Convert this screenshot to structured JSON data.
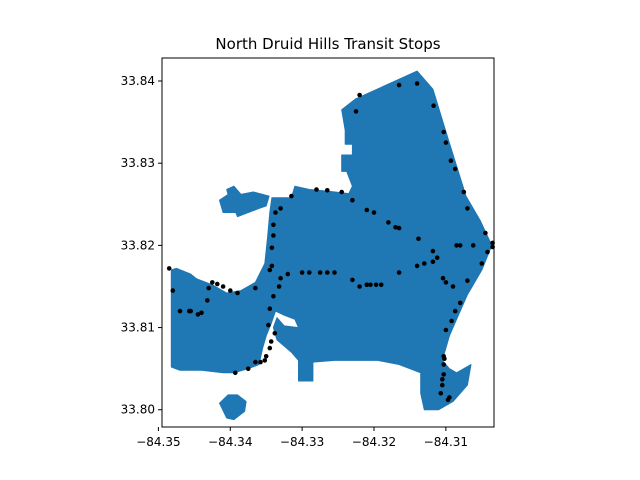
{
  "chart_data": {
    "type": "scatter",
    "title": "North Druid Hills Transit Stops",
    "xlabel": "",
    "ylabel": "",
    "xlim": [
      -84.3495,
      -84.3033
    ],
    "ylim": [
      33.7979,
      33.8428
    ],
    "xticks": [
      -84.35,
      -84.34,
      -84.33,
      -84.32,
      -84.31
    ],
    "xtick_labels": [
      "−84.35",
      "−84.34",
      "−84.33",
      "−84.32",
      "−84.31"
    ],
    "yticks": [
      33.8,
      33.81,
      33.82,
      33.83,
      33.84
    ],
    "ytick_labels": [
      "33.80",
      "33.81",
      "33.82",
      "33.83",
      "33.84"
    ],
    "grid": false,
    "polygon_color": "#1f77b4",
    "point_color": "#000000",
    "boundary": [
      [
        -84.3226,
        33.8378
      ],
      [
        -84.314,
        33.8412
      ],
      [
        -84.3118,
        33.839
      ],
      [
        -84.3097,
        33.833
      ],
      [
        -84.3072,
        33.826
      ],
      [
        -84.3052,
        33.823
      ],
      [
        -84.3036,
        33.82
      ],
      [
        -84.305,
        33.817
      ],
      [
        -84.307,
        33.814
      ],
      [
        -84.3085,
        33.811
      ],
      [
        -84.3095,
        33.809
      ],
      [
        -84.3105,
        33.806
      ],
      [
        -84.3095,
        33.805
      ],
      [
        -84.3085,
        33.8045
      ],
      [
        -84.3075,
        33.805
      ],
      [
        -84.3065,
        33.8055
      ],
      [
        -84.307,
        33.803
      ],
      [
        -84.309,
        33.801
      ],
      [
        -84.311,
        33.8
      ],
      [
        -84.313,
        33.8
      ],
      [
        -84.3135,
        33.802
      ],
      [
        -84.3135,
        33.8045
      ],
      [
        -84.3165,
        33.8055
      ],
      [
        -84.3195,
        33.806
      ],
      [
        -84.3255,
        33.806
      ],
      [
        -84.3285,
        33.8058
      ],
      [
        -84.3285,
        33.8035
      ],
      [
        -84.3305,
        33.8035
      ],
      [
        -84.3305,
        33.806
      ],
      [
        -84.3315,
        33.807
      ],
      [
        -84.3335,
        33.8085
      ],
      [
        -84.334,
        33.81
      ],
      [
        -84.3335,
        33.8112
      ],
      [
        -84.3325,
        33.8102
      ],
      [
        -84.3305,
        33.81
      ],
      [
        -84.331,
        33.811
      ],
      [
        -84.3325,
        33.8115
      ],
      [
        -84.3337,
        33.812
      ],
      [
        -84.3343,
        33.8105
      ],
      [
        -84.335,
        33.809
      ],
      [
        -84.3355,
        33.8075
      ],
      [
        -84.336,
        33.8055
      ],
      [
        -84.3375,
        33.805
      ],
      [
        -84.3395,
        33.8045
      ],
      [
        -84.341,
        33.8045
      ],
      [
        -84.344,
        33.8048
      ],
      [
        -84.347,
        33.8048
      ],
      [
        -84.3482,
        33.8052
      ],
      [
        -84.3482,
        33.817
      ],
      [
        -84.3475,
        33.8172
      ],
      [
        -84.3455,
        33.8162
      ],
      [
        -84.3425,
        33.8152
      ],
      [
        -84.3405,
        33.8142
      ],
      [
        -84.3385,
        33.8145
      ],
      [
        -84.3365,
        33.8155
      ],
      [
        -84.3352,
        33.8178
      ],
      [
        -84.3348,
        33.821
      ],
      [
        -84.3345,
        33.824
      ],
      [
        -84.3342,
        33.8258
      ],
      [
        -84.3315,
        33.8258
      ],
      [
        -84.331,
        33.8272
      ],
      [
        -84.329,
        33.8268
      ],
      [
        -84.3265,
        33.8266
      ],
      [
        -84.3235,
        33.8263
      ],
      [
        -84.323,
        33.8272
      ],
      [
        -84.3238,
        33.829
      ],
      [
        -84.3245,
        33.829
      ],
      [
        -84.3245,
        33.831
      ],
      [
        -84.323,
        33.831
      ],
      [
        -84.323,
        33.8323
      ],
      [
        -84.324,
        33.8323
      ],
      [
        -84.324,
        33.834
      ],
      [
        -84.3245,
        33.8365
      ]
    ],
    "lobe": [
      [
        -84.3475,
        33.8172
      ],
      [
        -84.3455,
        33.8165
      ],
      [
        -84.3445,
        33.8158
      ],
      [
        -84.3428,
        33.815
      ],
      [
        -84.3425,
        33.814
      ],
      [
        -84.345,
        33.8128
      ],
      [
        -84.347,
        33.8128
      ],
      [
        -84.348,
        33.814
      ]
    ],
    "north_ear": [
      [
        -84.3346,
        33.826
      ],
      [
        -84.335,
        33.8248
      ],
      [
        -84.336,
        33.8245
      ],
      [
        -84.3375,
        33.824
      ],
      [
        -84.339,
        33.8235
      ],
      [
        -84.3395,
        33.8245
      ],
      [
        -84.34,
        33.8252
      ],
      [
        -84.3405,
        33.8268
      ],
      [
        -84.3395,
        33.8272
      ],
      [
        -84.3385,
        33.8262
      ],
      [
        -84.3368,
        33.8265
      ]
    ],
    "east_lobe": [
      [
        -84.3375,
        33.824
      ],
      [
        -84.341,
        33.824
      ],
      [
        -84.3415,
        33.8255
      ],
      [
        -84.3398,
        33.8265
      ],
      [
        -84.3385,
        33.8248
      ]
    ],
    "islet": [
      [
        -84.3415,
        33.8008
      ],
      [
        -84.3405,
        33.799
      ],
      [
        -84.3395,
        33.7988
      ],
      [
        -84.338,
        33.7998
      ],
      [
        -84.3378,
        33.801
      ],
      [
        -84.339,
        33.8018
      ],
      [
        -84.3403,
        33.8018
      ]
    ],
    "stops": [
      [
        -84.322,
        33.8383
      ],
      [
        -84.3165,
        33.8395
      ],
      [
        -84.314,
        33.8397
      ],
      [
        -84.3117,
        33.837
      ],
      [
        -84.3103,
        33.8338
      ],
      [
        -84.31,
        33.8325
      ],
      [
        -84.3093,
        33.8303
      ],
      [
        -84.3087,
        33.8293
      ],
      [
        -84.3075,
        33.8265
      ],
      [
        -84.307,
        33.8245
      ],
      [
        -84.3045,
        33.8215
      ],
      [
        -84.3035,
        33.8203
      ],
      [
        -84.3035,
        33.8198
      ],
      [
        -84.3062,
        33.82
      ],
      [
        -84.308,
        33.82
      ],
      [
        -84.3085,
        33.82
      ],
      [
        -84.3225,
        33.8363
      ],
      [
        -84.3245,
        33.8265
      ],
      [
        -84.3265,
        33.8267
      ],
      [
        -84.328,
        33.8268
      ],
      [
        -84.3315,
        33.826
      ],
      [
        -84.333,
        33.8245
      ],
      [
        -84.3337,
        33.824
      ],
      [
        -84.334,
        33.8225
      ],
      [
        -84.334,
        33.8212
      ],
      [
        -84.3342,
        33.8197
      ],
      [
        -84.3342,
        33.8175
      ],
      [
        -84.3345,
        33.817
      ],
      [
        -84.323,
        33.8255
      ],
      [
        -84.321,
        33.8243
      ],
      [
        -84.32,
        33.824
      ],
      [
        -84.318,
        33.8228
      ],
      [
        -84.317,
        33.8222
      ],
      [
        -84.3165,
        33.8221
      ],
      [
        -84.3138,
        33.8208
      ],
      [
        -84.3118,
        33.8193
      ],
      [
        -84.3112,
        33.8185
      ],
      [
        -84.3118,
        33.818
      ],
      [
        -84.313,
        33.8178
      ],
      [
        -84.314,
        33.8175
      ],
      [
        -84.3165,
        33.8167
      ],
      [
        -84.319,
        33.8152
      ],
      [
        -84.3197,
        33.8152
      ],
      [
        -84.3205,
        33.8152
      ],
      [
        -84.321,
        33.8152
      ],
      [
        -84.322,
        33.815
      ],
      [
        -84.323,
        33.8158
      ],
      [
        -84.3255,
        33.8167
      ],
      [
        -84.3265,
        33.8167
      ],
      [
        -84.3275,
        33.8167
      ],
      [
        -84.329,
        33.8167
      ],
      [
        -84.33,
        33.8167
      ],
      [
        -84.332,
        33.8165
      ],
      [
        -84.333,
        33.816
      ],
      [
        -84.3332,
        33.815
      ],
      [
        -84.334,
        33.8138
      ],
      [
        -84.3345,
        33.8123
      ],
      [
        -84.3347,
        33.8103
      ],
      [
        -84.3338,
        33.8093
      ],
      [
        -84.3343,
        33.8083
      ],
      [
        -84.3345,
        33.8075
      ],
      [
        -84.335,
        33.8065
      ],
      [
        -84.3352,
        33.806
      ],
      [
        -84.3358,
        33.8058
      ],
      [
        -84.3365,
        33.8058
      ],
      [
        -84.3375,
        33.805
      ],
      [
        -84.3393,
        33.8045
      ],
      [
        -84.3365,
        33.8148
      ],
      [
        -84.339,
        33.8142
      ],
      [
        -84.34,
        33.8145
      ],
      [
        -84.341,
        33.815
      ],
      [
        -84.3418,
        33.8153
      ],
      [
        -84.3425,
        33.8155
      ],
      [
        -84.343,
        33.8148
      ],
      [
        -84.3432,
        33.8133
      ],
      [
        -84.344,
        33.8118
      ],
      [
        -84.3445,
        33.8116
      ],
      [
        -84.347,
        33.812
      ],
      [
        -84.3457,
        33.812
      ],
      [
        -84.3455,
        33.812
      ],
      [
        -84.348,
        33.8145
      ],
      [
        -84.3485,
        33.8172
      ],
      [
        -84.3104,
        33.816
      ],
      [
        -84.31,
        33.8155
      ],
      [
        -84.309,
        33.815
      ],
      [
        -84.308,
        33.813
      ],
      [
        -84.3087,
        33.812
      ],
      [
        -84.3092,
        33.8108
      ],
      [
        -84.31,
        33.8097
      ],
      [
        -84.3102,
        33.8062
      ],
      [
        -84.3103,
        33.8065
      ],
      [
        -84.3103,
        33.8055
      ],
      [
        -84.3105,
        33.8037
      ],
      [
        -84.3103,
        33.8043
      ],
      [
        -84.3105,
        33.803
      ],
      [
        -84.3107,
        33.802
      ],
      [
        -84.3095,
        33.8015
      ],
      [
        -84.3097,
        33.8012
      ],
      [
        -84.305,
        33.8178
      ],
      [
        -84.3042,
        33.8192
      ],
      [
        -84.307,
        33.8157
      ]
    ]
  }
}
